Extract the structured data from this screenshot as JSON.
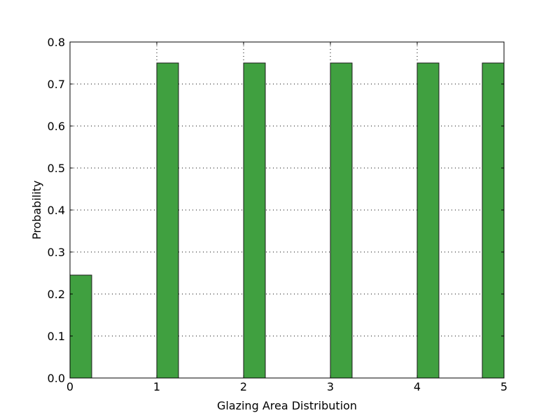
{
  "chart_data": {
    "type": "bar",
    "title": "",
    "xlabel": "Glazing Area Distribution",
    "ylabel": "Probability",
    "xlim": [
      0,
      5
    ],
    "ylim": [
      0,
      0.8
    ],
    "x_ticks": [
      "0",
      "1",
      "2",
      "3",
      "4",
      "5"
    ],
    "y_ticks": [
      "0.0",
      "0.1",
      "0.2",
      "0.3",
      "0.4",
      "0.5",
      "0.6",
      "0.7",
      "0.8"
    ],
    "grid": true,
    "bars": [
      {
        "x_start": 0.0,
        "x_end": 0.25,
        "value": 0.245
      },
      {
        "x_start": 1.0,
        "x_end": 1.25,
        "value": 0.75
      },
      {
        "x_start": 2.0,
        "x_end": 2.25,
        "value": 0.75
      },
      {
        "x_start": 3.0,
        "x_end": 3.25,
        "value": 0.75
      },
      {
        "x_start": 4.0,
        "x_end": 4.25,
        "value": 0.75
      },
      {
        "x_start": 4.75,
        "x_end": 5.0,
        "value": 0.75
      }
    ],
    "colors": {
      "bar_fill": "#40a040",
      "bar_edge": "#1a1a1a",
      "grid": "#000000"
    }
  }
}
